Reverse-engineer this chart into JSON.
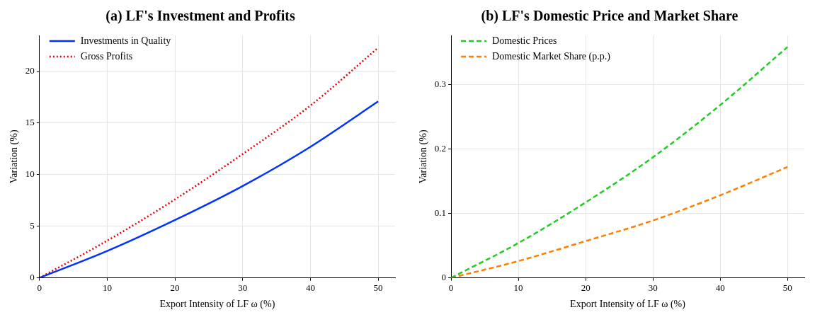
{
  "chart_data": [
    {
      "type": "line",
      "title": "(a) LF's Investment and Profits",
      "xlabel": "Export Intensity of LF ω (%)",
      "ylabel": "Variation (%)",
      "x": [
        0,
        10,
        20,
        30,
        40,
        50
      ],
      "series": [
        {
          "name": "Investments in Quality",
          "color": "#0033ff",
          "line_style": "solid",
          "values": [
            0,
            2.6,
            5.6,
            8.9,
            12.7,
            17.1
          ]
        },
        {
          "name": "Gross Profits",
          "color": "#e8000b",
          "line_style": "dotted",
          "values": [
            0,
            3.6,
            7.6,
            12.0,
            16.7,
            22.3
          ]
        }
      ],
      "xlim": [
        0,
        52.5
      ],
      "xticks": [
        0,
        10,
        20,
        30,
        40,
        50
      ],
      "ylim": [
        0,
        23.5
      ],
      "yticks": [
        0,
        5,
        10,
        15,
        20
      ],
      "grid": true,
      "legend": "top left",
      "marker": "none"
    },
    {
      "type": "line",
      "title": "(b) LF's Domestic Price and Market Share",
      "xlabel": "Export Intensity of LF ω (%)",
      "ylabel": "Variation (%)",
      "x": [
        0,
        10,
        20,
        30,
        40,
        50
      ],
      "series": [
        {
          "name": "Domestic Prices",
          "color": "#22cc22",
          "line_style": "dashed",
          "values": [
            0,
            0.054,
            0.117,
            0.187,
            0.268,
            0.358
          ]
        },
        {
          "name": "Domestic Market Share (p.p.)",
          "color": "#ff7f00",
          "line_style": "dashed",
          "values": [
            0,
            0.026,
            0.057,
            0.089,
            0.128,
            0.172
          ]
        }
      ],
      "xlim": [
        0,
        52.5
      ],
      "xticks": [
        0,
        10,
        20,
        30,
        40,
        50
      ],
      "ylim": [
        0,
        0.376
      ],
      "yticks": [
        0,
        0.1,
        0.2,
        0.3
      ],
      "grid": true,
      "legend": "top left",
      "marker": "none"
    }
  ]
}
